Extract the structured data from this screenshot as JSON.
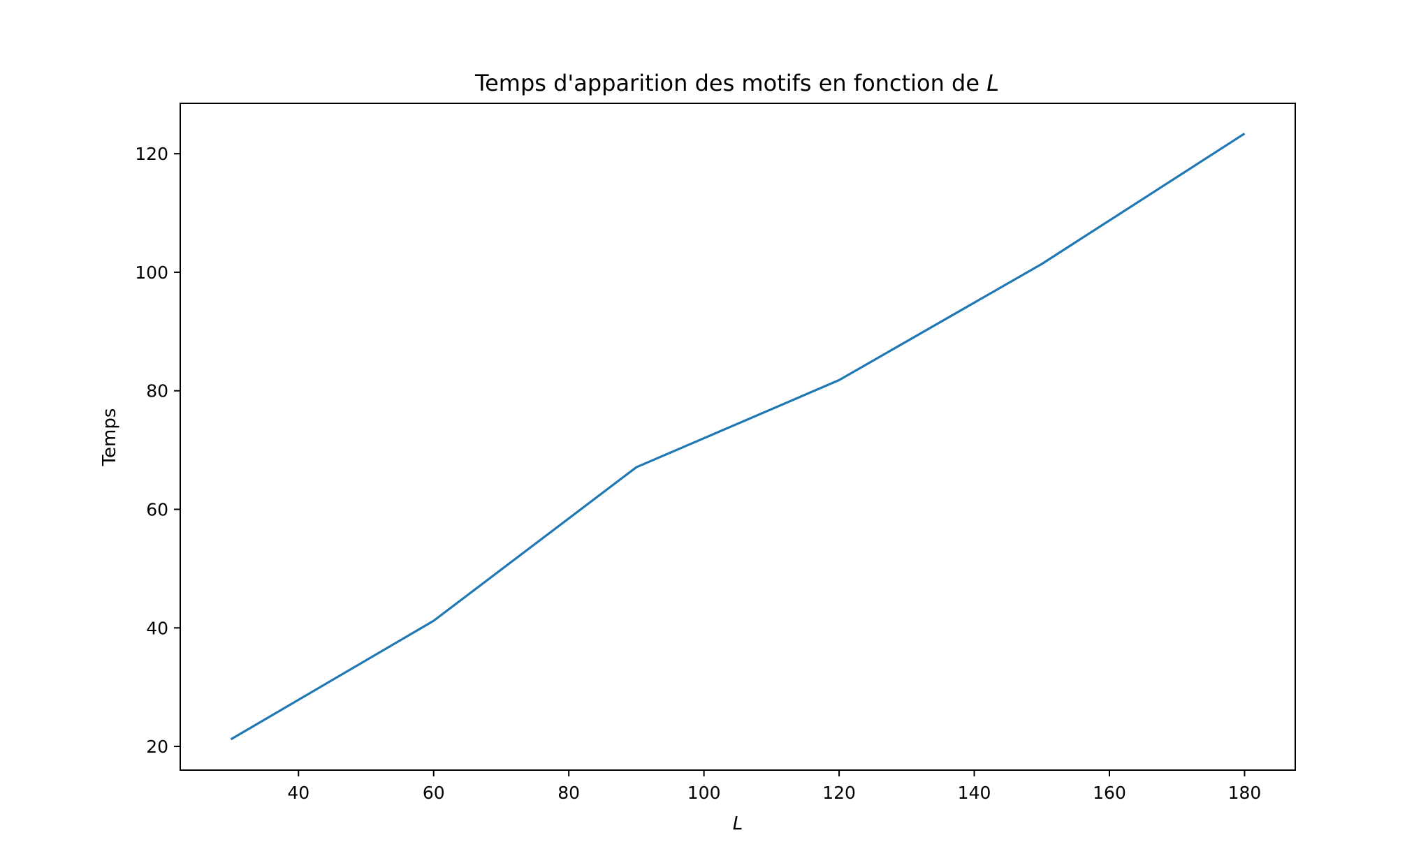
{
  "chart_data": {
    "type": "line",
    "title": "Temps d'apparition des motifs en fonction de",
    "title_symbol": "L",
    "xlabel": "L",
    "ylabel": "Temps",
    "x": [
      30,
      60,
      90,
      120,
      150,
      180
    ],
    "series": [
      {
        "values": [
          21.2,
          41.2,
          67.1,
          81.8,
          101.4,
          123.4
        ],
        "color": "#1f77b4"
      }
    ],
    "xlim": [
      22.5,
      187.5
    ],
    "ylim": [
      16,
      128.5
    ],
    "xticks": [
      40,
      60,
      80,
      100,
      120,
      140,
      160,
      180
    ],
    "yticks": [
      20,
      40,
      60,
      80,
      100,
      120
    ],
    "grid": false,
    "legend": "none"
  }
}
